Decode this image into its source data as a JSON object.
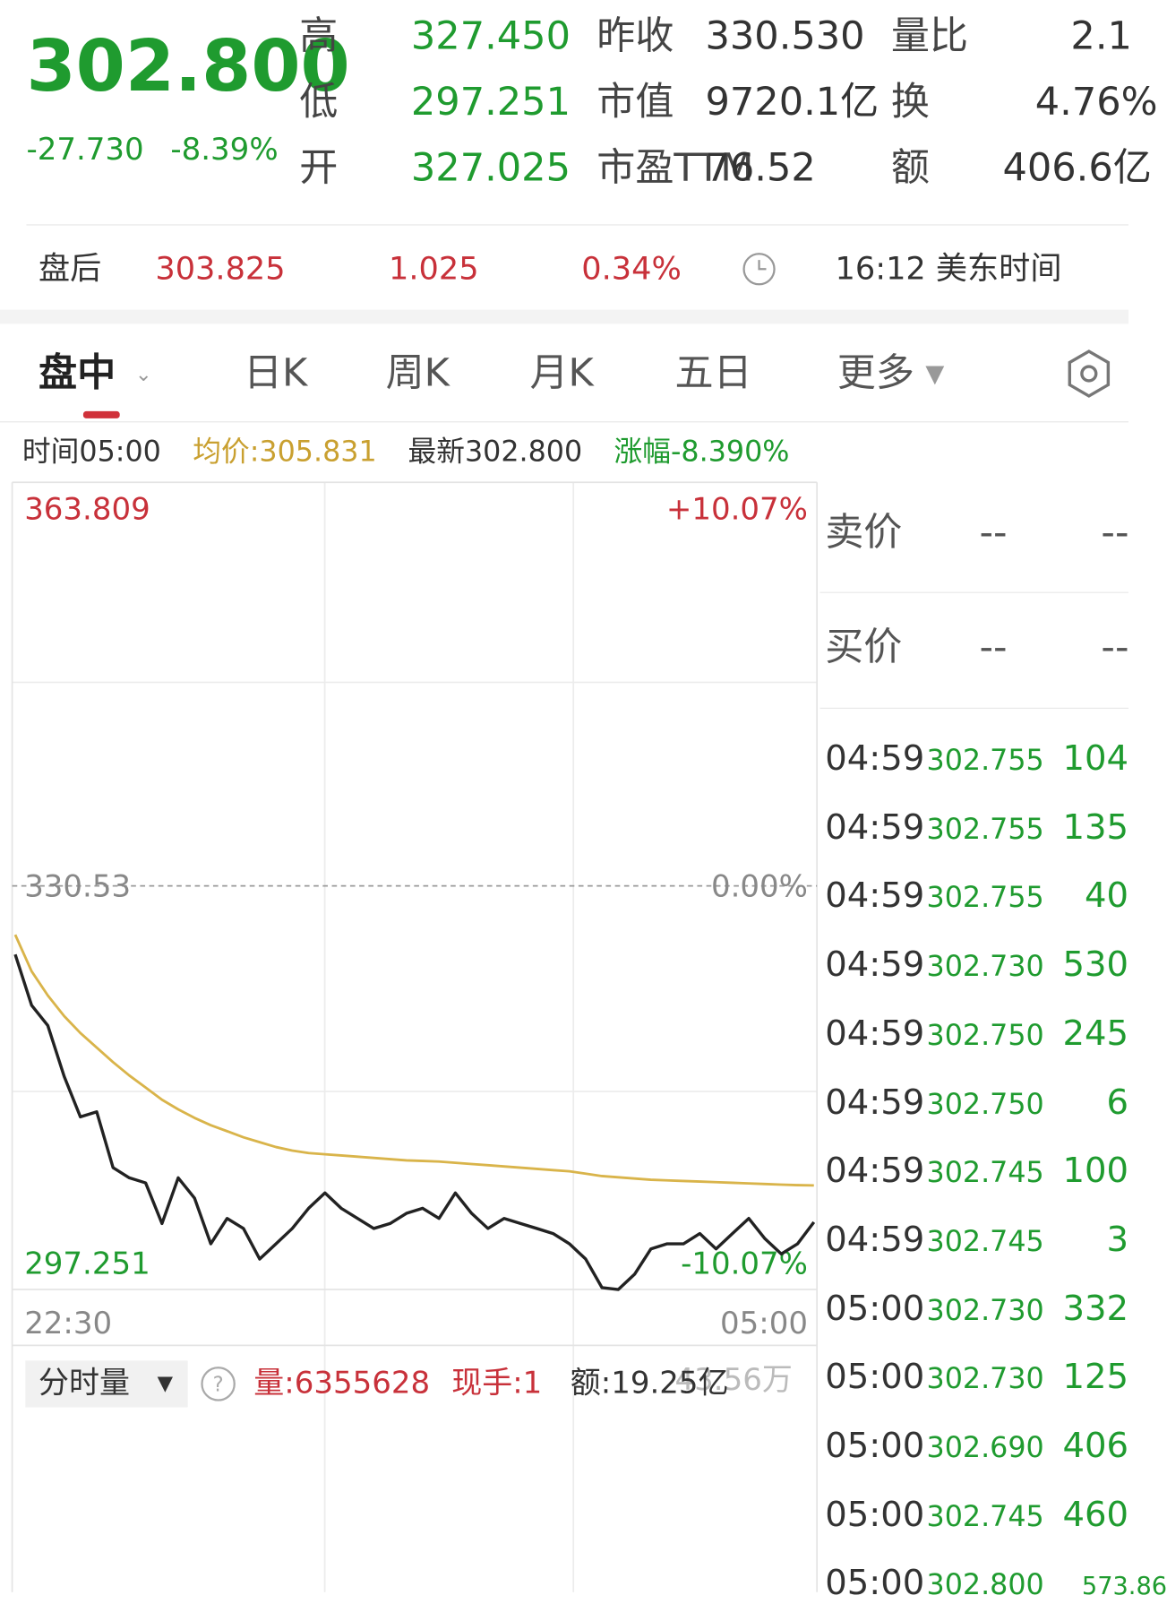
{
  "header": {
    "price": "302.800",
    "change": "-27.730",
    "change_pct": "-8.39%",
    "stats": [
      [
        "高",
        "327.450"
      ],
      [
        "低",
        "297.251"
      ],
      [
        "开",
        "327.025"
      ],
      [
        "昨收",
        "330.530"
      ],
      [
        "市值",
        "9720.1亿"
      ],
      [
        "市盈TTM",
        "76.52"
      ],
      [
        "量比",
        "2.1"
      ],
      [
        "换",
        "4.76%"
      ],
      [
        "额",
        "406.6亿"
      ]
    ]
  },
  "after_hours": {
    "label": "盘后",
    "price": "303.825",
    "change": "1.025",
    "change_pct": "0.34%",
    "time": "16:12 美东时间"
  },
  "tabs": [
    "盘中",
    "日K",
    "周K",
    "月K",
    "五日",
    "更多"
  ],
  "info_bar": {
    "time": "时间05:00",
    "avg": "均价:305.831",
    "latest": "最新302.800",
    "change": "涨幅-8.390%"
  },
  "chart_data": {
    "type": "line",
    "ylim": [
      297.251,
      363.809
    ],
    "yticks": [
      297.251,
      330.53,
      363.809
    ],
    "y2lim": [
      -10.07,
      10.07
    ],
    "y2ticks": [
      {
        "value": -10.07,
        "label": "-10.07%"
      },
      {
        "value": 0,
        "label": "0.00%"
      },
      {
        "value": 10.07,
        "label": "+10.07%"
      }
    ],
    "x_labels": [
      "22:30",
      "05:00"
    ],
    "series": [
      {
        "name": "最新",
        "color": "#222222",
        "values": [
          324.88,
          320.69,
          319.02,
          314.83,
          311.48,
          311.9,
          307.3,
          306.46,
          306.04,
          302.69,
          306.46,
          304.79,
          301.02,
          303.11,
          302.28,
          299.76,
          301.02,
          302.28,
          303.95,
          305.21,
          303.95,
          303.11,
          302.28,
          302.69,
          303.53,
          303.95,
          303.11,
          305.21,
          303.53,
          302.28,
          303.11,
          302.69,
          302.28,
          301.86,
          301.02,
          299.76,
          297.4,
          297.251,
          298.51,
          300.6,
          301.02,
          301.02,
          301.86,
          300.6,
          301.86,
          303.11,
          301.44,
          300.18,
          301.02,
          302.8
        ]
      },
      {
        "name": "均价",
        "color": "#d9b44a",
        "values": [
          326.5,
          323.5,
          321.5,
          319.8,
          318.4,
          317.2,
          316.0,
          314.9,
          313.9,
          312.9,
          312.1,
          311.4,
          310.8,
          310.3,
          309.8,
          309.4,
          309.0,
          308.7,
          308.5,
          308.4,
          308.3,
          308.2,
          308.1,
          308.0,
          307.9,
          307.85,
          307.8,
          307.7,
          307.6,
          307.5,
          307.4,
          307.3,
          307.2,
          307.1,
          307.0,
          306.8,
          306.6,
          306.5,
          306.4,
          306.3,
          306.25,
          306.2,
          306.15,
          306.1,
          306.05,
          306.0,
          305.95,
          305.9,
          305.86,
          305.831
        ]
      }
    ]
  },
  "volume_bar": {
    "selector": "分时量",
    "volume": "量:6355628",
    "hand": "现手:1",
    "amount": "额:19.25亿",
    "extra": "43.56万"
  },
  "quote_panel": {
    "ask": [
      "卖价",
      "--",
      "--"
    ],
    "bid": [
      "买价",
      "--",
      "--"
    ],
    "trades": [
      [
        "04:59",
        "302.755",
        "104"
      ],
      [
        "04:59",
        "302.755",
        "135"
      ],
      [
        "04:59",
        "302.755",
        "40"
      ],
      [
        "04:59",
        "302.730",
        "530"
      ],
      [
        "04:59",
        "302.750",
        "245"
      ],
      [
        "04:59",
        "302.750",
        "6"
      ],
      [
        "04:59",
        "302.745",
        "100"
      ],
      [
        "04:59",
        "302.745",
        "3"
      ],
      [
        "05:00",
        "302.730",
        "332"
      ],
      [
        "05:00",
        "302.730",
        "125"
      ],
      [
        "05:00",
        "302.690",
        "406"
      ],
      [
        "05:00",
        "302.745",
        "460"
      ],
      [
        "05:00",
        "302.800",
        "573.86"
      ]
    ]
  }
}
